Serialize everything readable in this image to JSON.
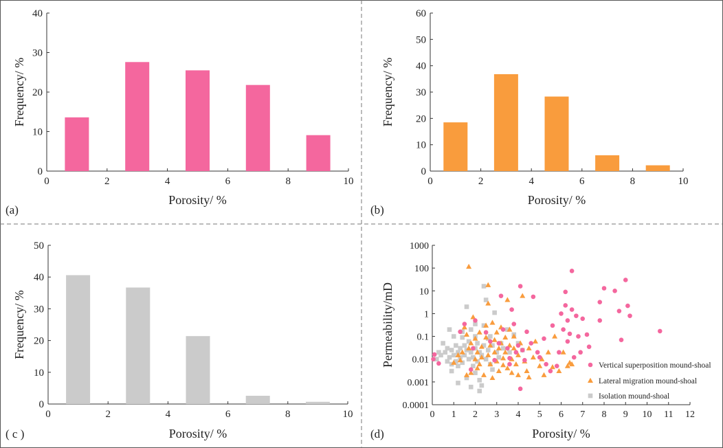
{
  "colors": {
    "pink": "#f4679e",
    "orange": "#f99c3d",
    "gray": "#cbcbcb",
    "frame": "#555555"
  },
  "chart_data": [
    {
      "id": "a",
      "panel_label": "(a)",
      "type": "bar",
      "xlabel": "Porosity/ %",
      "ylabel": "Frequency/ %",
      "xlim": [
        0,
        10
      ],
      "ylim": [
        0,
        40
      ],
      "xticks": [
        "0",
        "2",
        "4",
        "6",
        "8",
        "10"
      ],
      "yticks": [
        "0",
        "10",
        "20",
        "30",
        "40"
      ],
      "categories": [
        1,
        3,
        5,
        7,
        9
      ],
      "values": [
        13.6,
        27.6,
        25.5,
        21.8,
        9.1
      ],
      "color": "#f4679e"
    },
    {
      "id": "b",
      "panel_label": "(b)",
      "type": "bar",
      "xlabel": "Porosity/ %",
      "ylabel": "Frequency/ %",
      "xlim": [
        0,
        10
      ],
      "ylim": [
        0,
        60
      ],
      "xticks": [
        "0",
        "2",
        "4",
        "6",
        "8",
        "10"
      ],
      "yticks": [
        "0",
        "10",
        "20",
        "30",
        "40",
        "50",
        "60"
      ],
      "categories": [
        1,
        3,
        5,
        7,
        9
      ],
      "values": [
        18.5,
        36.8,
        28.3,
        6.0,
        2.2
      ],
      "color": "#f99c3d"
    },
    {
      "id": "c",
      "panel_label": "( c )",
      "type": "bar",
      "xlabel": "Porosity/ %",
      "ylabel": "Frequency/ %",
      "xlim": [
        0,
        10
      ],
      "ylim": [
        0,
        50
      ],
      "xticks": [
        "0",
        "2",
        "4",
        "6",
        "8",
        "10"
      ],
      "yticks": [
        "0",
        "10",
        "20",
        "30",
        "40",
        "50"
      ],
      "categories": [
        1,
        3,
        5,
        7,
        9
      ],
      "values": [
        40.6,
        36.7,
        21.4,
        2.6,
        0.7
      ],
      "color": "#cbcbcb"
    },
    {
      "id": "d",
      "panel_label": "(d)",
      "type": "scatter",
      "xlabel": "Porosity/ %",
      "ylabel": "Permeability/mD",
      "xlim": [
        0,
        12
      ],
      "ylim_log": [
        0.0001,
        1000
      ],
      "xticks": [
        "0",
        "1",
        "2",
        "3",
        "4",
        "5",
        "6",
        "7",
        "8",
        "9",
        "10",
        "11",
        "12"
      ],
      "yticks": [
        "0.0001",
        "0.001",
        "0.01",
        "0.1",
        "1",
        "10",
        "100",
        "1000"
      ],
      "series": [
        {
          "name": "Vertical superposition mound-shoal",
          "marker": "circle",
          "color": "#f4679e",
          "points": [
            [
              0.05,
              0.01
            ],
            [
              0.1,
              0.016
            ],
            [
              0.3,
              0.0065
            ],
            [
              1.3,
              0.16
            ],
            [
              1.5,
              0.35
            ],
            [
              1.8,
              0.0035
            ],
            [
              1.9,
              0.03
            ],
            [
              2.0,
              0.5
            ],
            [
              2.5,
              0.15
            ],
            [
              2.7,
              0.06
            ],
            [
              2.9,
              0.009
            ],
            [
              3.1,
              0.05
            ],
            [
              3.2,
              6
            ],
            [
              3.3,
              0.2
            ],
            [
              3.5,
              0.03
            ],
            [
              3.6,
              0.011
            ],
            [
              3.6,
              0.006
            ],
            [
              3.7,
              1.5
            ],
            [
              3.8,
              0.35
            ],
            [
              3.9,
              0.02
            ],
            [
              4.0,
              0.04
            ],
            [
              4.1,
              0.0005
            ],
            [
              4.1,
              16
            ],
            [
              4.2,
              0.025
            ],
            [
              4.3,
              0.009
            ],
            [
              4.4,
              0.16
            ],
            [
              4.6,
              0.05
            ],
            [
              4.7,
              5.5
            ],
            [
              4.9,
              0.02
            ],
            [
              5.0,
              0.012
            ],
            [
              5.2,
              0.08
            ],
            [
              5.3,
              0.006
            ],
            [
              5.5,
              0.003
            ],
            [
              5.6,
              0.3
            ],
            [
              5.8,
              0.005
            ],
            [
              5.9,
              0.02
            ],
            [
              6.0,
              1.0
            ],
            [
              6.1,
              0.2
            ],
            [
              6.2,
              9
            ],
            [
              6.2,
              2.3
            ],
            [
              6.3,
              0.5
            ],
            [
              6.3,
              0.06
            ],
            [
              6.4,
              0.13
            ],
            [
              6.5,
              75
            ],
            [
              6.5,
              1.5
            ],
            [
              6.6,
              0.012
            ],
            [
              6.7,
              0.8
            ],
            [
              6.8,
              0.1
            ],
            [
              6.9,
              0.02
            ],
            [
              7.0,
              0.6
            ],
            [
              7.2,
              0.12
            ],
            [
              7.3,
              0.035
            ],
            [
              7.8,
              0.5
            ],
            [
              7.8,
              3.2
            ],
            [
              8.0,
              13
            ],
            [
              8.5,
              10
            ],
            [
              8.7,
              1.3
            ],
            [
              8.8,
              0.07
            ],
            [
              9.0,
              30
            ],
            [
              9.1,
              2.2
            ],
            [
              9.2,
              0.8
            ],
            [
              10.6,
              0.17
            ]
          ]
        },
        {
          "name": "Lateral migration mound-shoal",
          "marker": "triangle",
          "color": "#f99c3d",
          "points": [
            [
              1.0,
              0.007
            ],
            [
              1.2,
              0.015
            ],
            [
              1.3,
              0.009
            ],
            [
              1.4,
              0.02
            ],
            [
              1.5,
              0.25
            ],
            [
              1.6,
              0.002
            ],
            [
              1.6,
              0.12
            ],
            [
              1.7,
              115
            ],
            [
              1.7,
              0.03
            ],
            [
              1.8,
              0.0025
            ],
            [
              1.8,
              0.05
            ],
            [
              1.9,
              0.7
            ],
            [
              2.0,
              0.01
            ],
            [
              2.0,
              0.08
            ],
            [
              2.1,
              0.004
            ],
            [
              2.1,
              0.02
            ],
            [
              2.2,
              0.15
            ],
            [
              2.2,
              0.006
            ],
            [
              2.3,
              0.012
            ],
            [
              2.3,
              0.035
            ],
            [
              2.4,
              0.002
            ],
            [
              2.5,
              0.3
            ],
            [
              2.5,
              0.09
            ],
            [
              2.6,
              18
            ],
            [
              2.6,
              2.8
            ],
            [
              2.6,
              0.015
            ],
            [
              2.7,
              0.006
            ],
            [
              2.7,
              0.04
            ],
            [
              2.8,
              0.4
            ],
            [
              2.8,
              0.0015
            ],
            [
              2.9,
              0.07
            ],
            [
              2.9,
              0.02
            ],
            [
              3.0,
              0.15
            ],
            [
              3.0,
              0.008
            ],
            [
              3.1,
              0.03
            ],
            [
              3.1,
              0.003
            ],
            [
              3.2,
              0.25
            ],
            [
              3.2,
              0.05
            ],
            [
              3.3,
              0.011
            ],
            [
              3.3,
              0.0055
            ],
            [
              3.4,
              0.09
            ],
            [
              3.4,
              0.02
            ],
            [
              3.5,
              4
            ],
            [
              3.5,
              0.004
            ],
            [
              3.6,
              0.2
            ],
            [
              3.6,
              0.04
            ],
            [
              3.7,
              0.01
            ],
            [
              3.7,
              0.0025
            ],
            [
              3.8,
              0.1
            ],
            [
              3.8,
              0.03
            ],
            [
              3.9,
              0.006
            ],
            [
              4.0,
              0.015
            ],
            [
              4.0,
              0.002
            ],
            [
              4.1,
              0.05
            ],
            [
              4.2,
              6
            ],
            [
              4.3,
              0.008
            ],
            [
              4.4,
              0.003
            ],
            [
              4.5,
              0.0016
            ],
            [
              4.5,
              0.03
            ],
            [
              4.7,
              0.012
            ],
            [
              4.8,
              0.06
            ],
            [
              5.0,
              0.005
            ],
            [
              5.1,
              0.01
            ],
            [
              5.2,
              0.002
            ],
            [
              5.4,
              0.02
            ],
            [
              5.6,
              0.0045
            ],
            [
              5.7,
              0.1
            ],
            [
              5.9,
              0.003
            ],
            [
              6.1,
              0.02
            ],
            [
              6.3,
              0.005
            ],
            [
              6.4,
              0.007
            ],
            [
              6.5,
              0.006
            ]
          ]
        },
        {
          "name": "Isolation mound-shoal",
          "marker": "square",
          "color": "#cbcbcb",
          "points": [
            [
              0.2,
              0.01
            ],
            [
              0.3,
              0.02
            ],
            [
              0.4,
              0.015
            ],
            [
              0.5,
              0.05
            ],
            [
              0.6,
              0.02
            ],
            [
              0.7,
              0.008
            ],
            [
              0.7,
              0.03
            ],
            [
              0.8,
              0.012
            ],
            [
              0.8,
              0.2
            ],
            [
              0.9,
              0.006
            ],
            [
              0.9,
              0.025
            ],
            [
              1.0,
              0.015
            ],
            [
              1.0,
              0.1
            ],
            [
              1.1,
              0.008
            ],
            [
              1.1,
              0.04
            ],
            [
              1.2,
              0.02
            ],
            [
              1.2,
              0.005
            ],
            [
              1.3,
              0.012
            ],
            [
              1.3,
              0.03
            ],
            [
              1.4,
              0.09
            ],
            [
              1.4,
              0.007
            ],
            [
              1.5,
              0.015
            ],
            [
              1.5,
              0.04
            ],
            [
              1.6,
              2.0
            ],
            [
              1.6,
              0.025
            ],
            [
              1.6,
              0.0015
            ],
            [
              1.7,
              0.01
            ],
            [
              1.7,
              0.06
            ],
            [
              1.8,
              0.2
            ],
            [
              1.8,
              0.02
            ],
            [
              1.9,
              0.012
            ],
            [
              1.9,
              0.005
            ],
            [
              2.0,
              0.03
            ],
            [
              2.0,
              0.0025
            ],
            [
              2.0,
              0.1
            ],
            [
              2.1,
              0.008
            ],
            [
              2.1,
              0.05
            ],
            [
              2.2,
              0.0012
            ],
            [
              2.2,
              0.02
            ],
            [
              2.3,
              0.015
            ],
            [
              2.3,
              0.0007
            ],
            [
              2.4,
              16
            ],
            [
              2.4,
              0.3
            ],
            [
              2.4,
              0.04
            ],
            [
              2.5,
              0.01
            ],
            [
              2.5,
              4
            ],
            [
              2.6,
              0.025
            ],
            [
              2.6,
              0.08
            ],
            [
              2.7,
              0.006
            ],
            [
              2.7,
              0.1
            ],
            [
              2.8,
              0.0035
            ],
            [
              2.8,
              0.04
            ],
            [
              2.9,
              1.1
            ],
            [
              3.0,
              0.02
            ],
            [
              3.1,
              0.012
            ],
            [
              3.2,
              0.05
            ],
            [
              3.3,
              0.03
            ],
            [
              3.5,
              0.2
            ],
            [
              3.6,
              0.02
            ],
            [
              3.8,
              0.12
            ],
            [
              4.0,
              0.05
            ],
            [
              4.2,
              0.025
            ],
            [
              1.2,
              0.0009
            ],
            [
              1.8,
              0.0006
            ],
            [
              0.9,
              0.003
            ],
            [
              2.2,
              0.0004
            ],
            [
              1.4,
              0.16
            ],
            [
              2.0,
              0.35
            ]
          ]
        }
      ]
    }
  ]
}
